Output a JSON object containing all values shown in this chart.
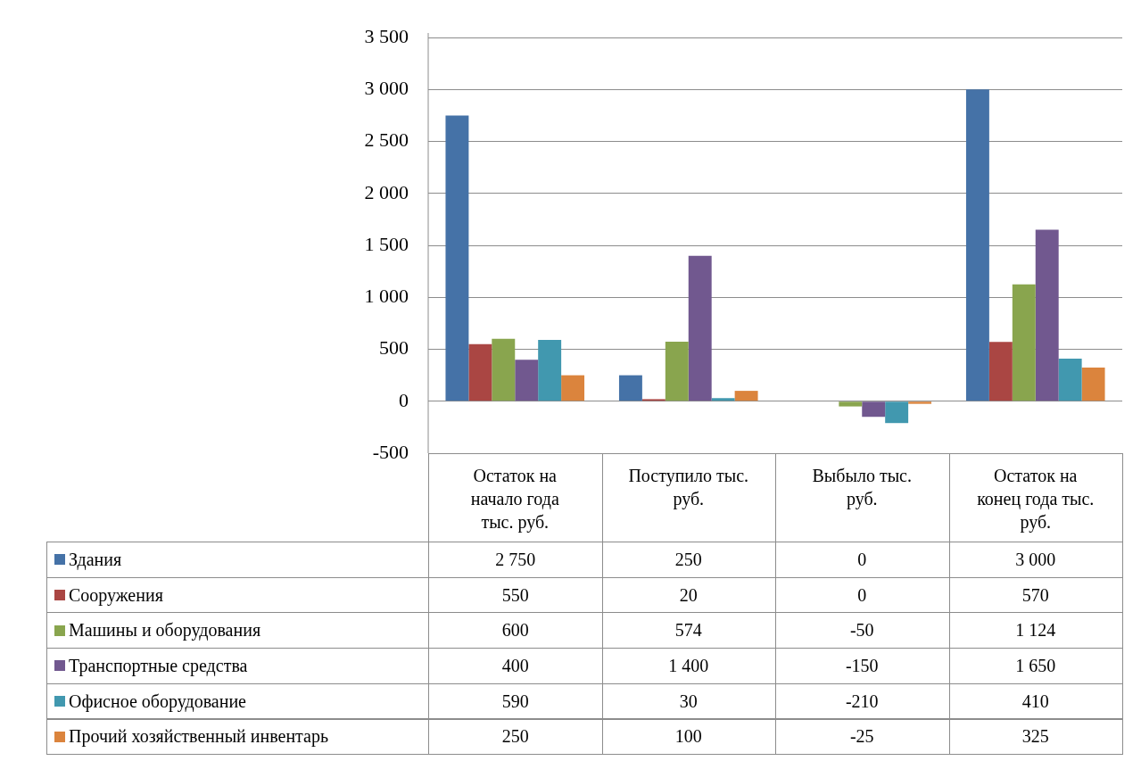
{
  "chart_data": {
    "type": "bar",
    "categories": [
      "Остаток на начало года тыс. руб.",
      "Поступило тыс. руб.",
      "Выбыло тыс. руб.",
      "Остаток на конец года тыс. руб."
    ],
    "series": [
      {
        "name": "Здания",
        "color": "#4572a7",
        "values": [
          2750,
          250,
          0,
          3000
        ],
        "value_labels": [
          "2 750",
          "250",
          "0",
          "3 000"
        ]
      },
      {
        "name": "Сооружения",
        "color": "#aa4643",
        "values": [
          550,
          20,
          0,
          570
        ],
        "value_labels": [
          "550",
          "20",
          "0",
          "570"
        ]
      },
      {
        "name": "Машины и оборудования",
        "color": "#89a54e",
        "values": [
          600,
          574,
          -50,
          1124
        ],
        "value_labels": [
          "600",
          "574",
          "-50",
          "1 124"
        ]
      },
      {
        "name": "Транспортные средства",
        "color": "#71588f",
        "values": [
          400,
          1400,
          -150,
          1650
        ],
        "value_labels": [
          "400",
          "1 400",
          "-150",
          "1 650"
        ]
      },
      {
        "name": "Офисное оборудование",
        "color": "#4198af",
        "values": [
          590,
          30,
          -210,
          410
        ],
        "value_labels": [
          "590",
          "30",
          "-210",
          "410"
        ]
      },
      {
        "name": "Прочий хозяйственный инвентарь",
        "color": "#db843d",
        "values": [
          250,
          100,
          -25,
          325
        ],
        "value_labels": [
          "250",
          "100",
          "-25",
          "325"
        ]
      }
    ],
    "ylim": [
      -500,
      3500
    ],
    "yticks": [
      {
        "value": -500,
        "label": "-500"
      },
      {
        "value": 0,
        "label": "0"
      },
      {
        "value": 500,
        "label": "500"
      },
      {
        "value": 1000,
        "label": "1 000"
      },
      {
        "value": 1500,
        "label": "1 500"
      },
      {
        "value": 2000,
        "label": "2 000"
      },
      {
        "value": 2500,
        "label": "2 500"
      },
      {
        "value": 3000,
        "label": "3 000"
      },
      {
        "value": 3500,
        "label": "3 500"
      }
    ],
    "grid": "y",
    "legend": "bottom"
  }
}
